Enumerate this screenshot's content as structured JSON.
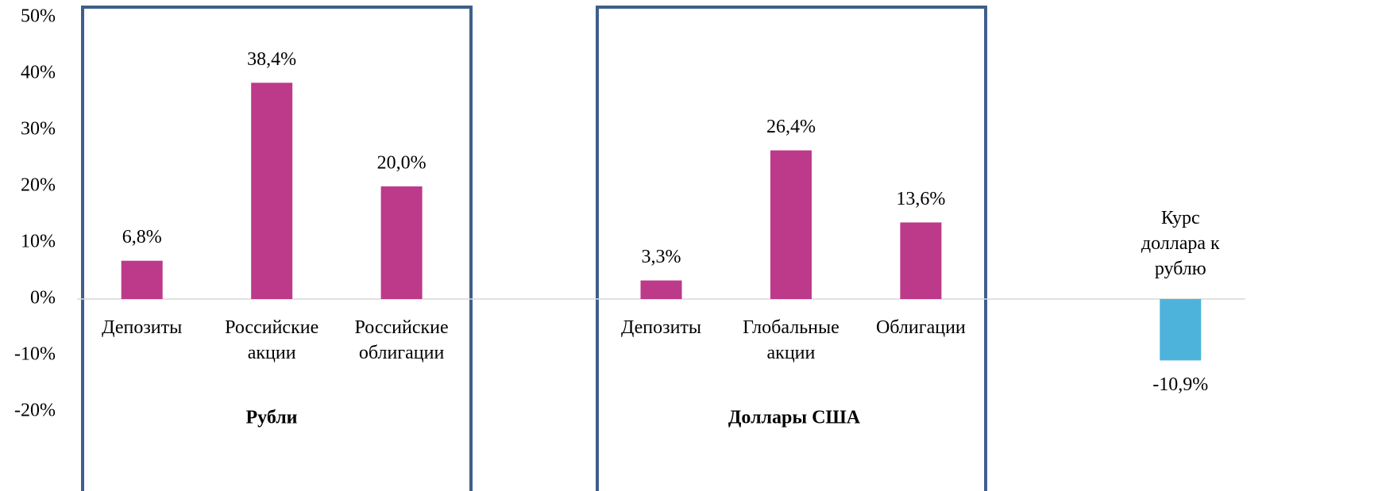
{
  "chart_data": {
    "type": "bar",
    "categories": [
      "Депозиты",
      "Российские акции",
      "Российские облигации",
      null,
      "Депозиты",
      "Глобальные акции",
      "Облигации",
      null,
      "Курс доллара к рублю"
    ],
    "values": [
      6.8,
      38.4,
      20.0,
      null,
      3.3,
      26.4,
      13.6,
      null,
      -10.9
    ],
    "value_labels": [
      "6,8%",
      "38,4%",
      "20,0%",
      null,
      "3,3%",
      "26,4%",
      "13,6%",
      null,
      "-10,9%"
    ],
    "colors": [
      "#bd398a",
      "#bd398a",
      "#bd398a",
      null,
      "#bd398a",
      "#bd398a",
      "#bd398a",
      null,
      "#4eb3da"
    ],
    "ylim": [
      -20,
      50
    ],
    "yticks": [
      {
        "value": -20,
        "label": "-20%"
      },
      {
        "value": -10,
        "label": "-10%"
      },
      {
        "value": 0,
        "label": "0%"
      },
      {
        "value": 10,
        "label": "10%"
      },
      {
        "value": 20,
        "label": "20%"
      },
      {
        "value": 30,
        "label": "30%"
      },
      {
        "value": 40,
        "label": "40%"
      },
      {
        "value": 50,
        "label": "50%"
      }
    ],
    "groups": [
      {
        "label": "Рубли"
      },
      {
        "label": "Доллары США"
      }
    ]
  }
}
